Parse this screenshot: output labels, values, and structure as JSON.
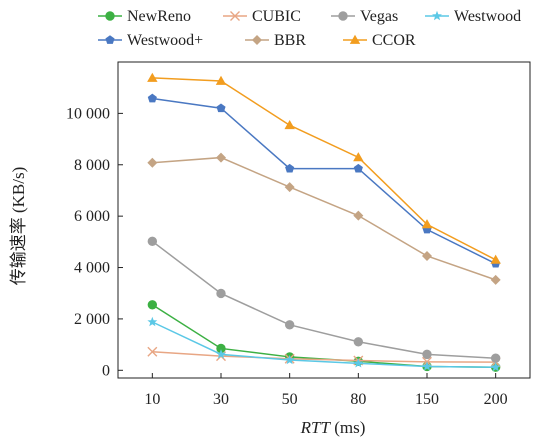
{
  "chart_data": {
    "type": "line",
    "categories": [
      "10",
      "30",
      "50",
      "80",
      "150",
      "200"
    ],
    "xlabel": {
      "italic": "RTT",
      "unit": " (ms)"
    },
    "ylabel": "传输速率 (KB/s)",
    "ylim": [
      -300,
      12000
    ],
    "yticks": [
      {
        "value": 0,
        "label": "0"
      },
      {
        "value": 2000,
        "label": "2 000"
      },
      {
        "value": 4000,
        "label": "4 000"
      },
      {
        "value": 6000,
        "label": "6 000"
      },
      {
        "value": 8000,
        "label": "8 000"
      },
      {
        "value": 10000,
        "label": "10 000"
      }
    ],
    "grid": false,
    "legend_position": "top",
    "series": [
      {
        "name": "NewReno",
        "color": "#3cb043",
        "marker": "circle",
        "values": [
          2550,
          850,
          520,
          350,
          150,
          120
        ]
      },
      {
        "name": "CUBIC",
        "color": "#e8a684",
        "marker": "x",
        "values": [
          720,
          550,
          450,
          380,
          330,
          320
        ]
      },
      {
        "name": "Vegas",
        "color": "#9e9e9e",
        "marker": "circle",
        "values": [
          5020,
          2990,
          1770,
          1110,
          620,
          470
        ]
      },
      {
        "name": "Westwood",
        "color": "#5bc8e6",
        "marker": "star",
        "values": [
          1880,
          620,
          400,
          270,
          150,
          120
        ]
      },
      {
        "name": "Westwood+",
        "color": "#4a78c2",
        "marker": "pentagon",
        "values": [
          10580,
          10200,
          7850,
          7850,
          5480,
          4150
        ]
      },
      {
        "name": "BBR",
        "color": "#c4a484",
        "marker": "diamond",
        "values": [
          8080,
          8280,
          7130,
          6020,
          4450,
          3520
        ]
      },
      {
        "name": "CCOR",
        "color": "#f29d1f",
        "marker": "triangle",
        "values": [
          11380,
          11260,
          9540,
          8290,
          5680,
          4300
        ]
      }
    ]
  }
}
